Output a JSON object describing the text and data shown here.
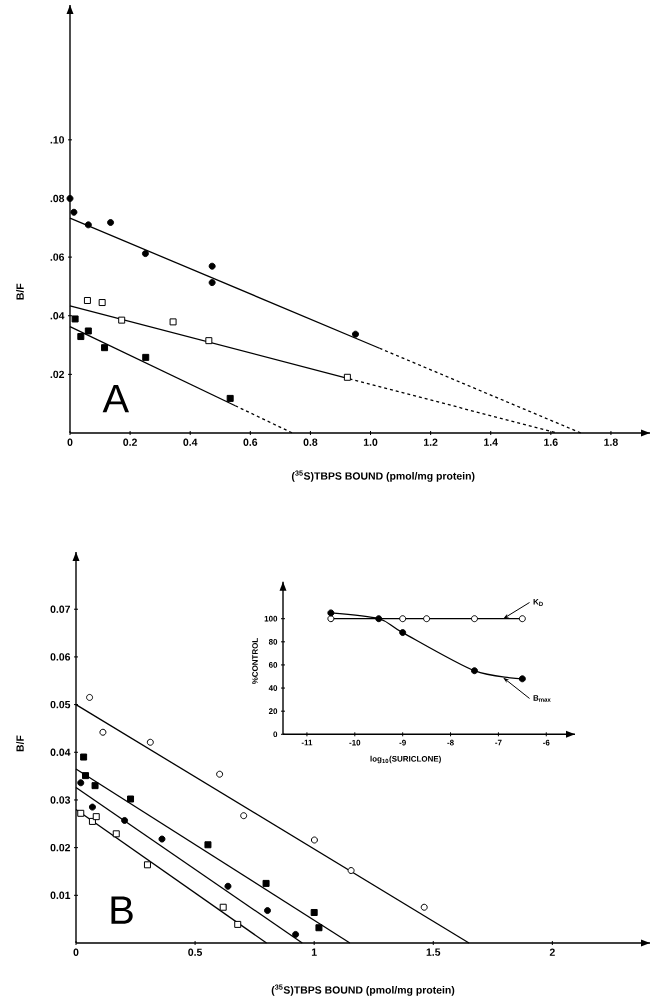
{
  "chart_data": [
    {
      "type": "scatter",
      "xlabel": "($^{35}$S)TBPS BOUND (pmol/mg protein)",
      "ylabel": "B/F",
      "xlim": [
        0,
        1.93
      ],
      "ylim": [
        0,
        0.146
      ],
      "xticks": [
        0,
        0.2,
        0.4,
        0.6,
        0.8,
        {
          "value": 1,
          "label": "1.0"
        },
        1.2,
        1.4,
        1.6,
        1.8
      ],
      "yticks": [
        {
          "value": 0.02,
          "label": ".02"
        },
        {
          "value": 0.04,
          "label": ".04"
        },
        {
          "value": 0.06,
          "label": ".06"
        },
        {
          "value": 0.08,
          "label": ".08"
        },
        {
          "value": 0.1,
          "label": ".10"
        }
      ],
      "annotations": [
        "A"
      ],
      "series": [
        {
          "marker": "circle",
          "color": "#000000",
          "x": [
            0,
            0.013,
            0.061,
            0.135,
            0.251,
            0.473,
            0.473,
            0.95
          ],
          "values": [
            0.08,
            0.0753,
            0.071,
            0.0718,
            0.0612,
            0.0569,
            0.0513,
            0.0337
          ]
        },
        {
          "marker": "square",
          "color": "#ffffff",
          "x": [
            0.058,
            0.107,
            0.172,
            0.343,
            0.462,
            0.923
          ],
          "values": [
            0.0452,
            0.0445,
            0.0385,
            0.0379,
            0.0315,
            0.019
          ]
        },
        {
          "marker": "square",
          "color": "#000000",
          "x": [
            0.017,
            0.036,
            0.061,
            0.115,
            0.252,
            0.533
          ],
          "values": [
            0.0389,
            0.0329,
            0.0348,
            0.0291,
            0.0258,
            0.0118
          ]
        },
        {
          "type": "line",
          "marker": "none",
          "line_style": "solid",
          "color": "#000000",
          "x": [
            0,
            1.03
          ],
          "values": [
            0.0733,
            0.0289
          ]
        },
        {
          "type": "line",
          "marker": "none",
          "line_style": "dashed",
          "color": "#000000",
          "x": [
            1.03,
            1.7
          ],
          "values": [
            0.0289,
            0
          ]
        },
        {
          "type": "line",
          "marker": "none",
          "line_style": "solid",
          "color": "#000000",
          "x": [
            0,
            0.93
          ],
          "values": [
            0.0434,
            0.0185
          ]
        },
        {
          "type": "line",
          "marker": "none",
          "line_style": "dashed",
          "color": "#000000",
          "x": [
            0.93,
            1.62
          ],
          "values": [
            0.0185,
            0
          ]
        },
        {
          "type": "line",
          "marker": "none",
          "line_style": "solid",
          "color": "#000000",
          "x": [
            0,
            0.55
          ],
          "values": [
            0.0363,
            0.0093
          ]
        },
        {
          "type": "line",
          "marker": "none",
          "line_style": "dashed",
          "color": "#000000",
          "x": [
            0.55,
            0.74
          ],
          "values": [
            0.0093,
            0
          ]
        }
      ]
    },
    {
      "type": "scatter",
      "xlabel": "($^{35}$S)TBPS BOUND (pmol/mg protein)",
      "ylabel": "B/F",
      "xlim": [
        0,
        2.41
      ],
      "ylim": [
        0,
        0.082
      ],
      "xticks": [
        0,
        0.5,
        1,
        1.5,
        2
      ],
      "yticks": [
        0.01,
        0.02,
        0.03,
        0.04,
        0.05,
        0.06,
        0.07
      ],
      "annotations": [
        "B"
      ],
      "series": [
        {
          "marker": "circle",
          "color": "#ffffff",
          "x": [
            0.057,
            0.113,
            0.312,
            0.603,
            0.704,
            1.001,
            1.155,
            1.462
          ],
          "values": [
            0.0515,
            0.0442,
            0.0421,
            0.0354,
            0.0267,
            0.0216,
            0.0152,
            0.0075
          ]
        },
        {
          "marker": "square",
          "color": "#000000",
          "x": [
            0.032,
            0.04,
            0.08,
            0.229,
            0.554,
            0.798,
            1.0,
            1.02
          ],
          "values": [
            0.039,
            0.0351,
            0.033,
            0.0302,
            0.0206,
            0.0125,
            0.0064,
            0.0032
          ]
        },
        {
          "marker": "circle",
          "color": "#000000",
          "x": [
            0.02,
            0.069,
            0.204,
            0.361,
            0.638,
            0.804,
            0.922
          ],
          "values": [
            0.0336,
            0.0285,
            0.0257,
            0.0218,
            0.0119,
            0.0068,
            0.0018
          ]
        },
        {
          "marker": "square",
          "color": "#ffffff",
          "x": [
            0.02,
            0.069,
            0.085,
            0.169,
            0.3,
            0.618,
            0.679
          ],
          "values": [
            0.0272,
            0.0255,
            0.0265,
            0.0229,
            0.0164,
            0.0075,
            0.0039
          ]
        },
        {
          "type": "line",
          "marker": "none",
          "line_style": "solid",
          "color": "#000000",
          "x": [
            0,
            1.65
          ],
          "values": [
            0.05,
            0
          ]
        },
        {
          "type": "line",
          "marker": "none",
          "line_style": "solid",
          "color": "#000000",
          "x": [
            0,
            1.15
          ],
          "values": [
            0.0365,
            0
          ]
        },
        {
          "type": "line",
          "marker": "none",
          "line_style": "solid",
          "color": "#000000",
          "x": [
            0,
            0.95
          ],
          "values": [
            0.0326,
            0
          ]
        },
        {
          "type": "line",
          "marker": "none",
          "line_style": "solid",
          "color": "#000000",
          "x": [
            0,
            0.8
          ],
          "values": [
            0.028,
            0
          ]
        }
      ]
    },
    {
      "type": "line",
      "xlabel": "log$_{10}$(SURICLONE)",
      "ylabel": "%CONTROL",
      "xlim": [
        -11.5,
        -5.4
      ],
      "ylim": [
        0,
        132
      ],
      "xticks": [
        -11,
        -10,
        -9,
        -8,
        -7,
        -6
      ],
      "yticks": [
        0,
        20,
        40,
        60,
        80,
        100
      ],
      "annotations": [
        {
          "text": "K$_{D}$",
          "x": -6.9,
          "y": 100
        },
        {
          "text": "B$_{max}$",
          "x": -6.9,
          "y": 49
        }
      ],
      "series": [
        {
          "marker": "none",
          "line_style": "solid",
          "color": "#000000",
          "x": [
            -10.5,
            -9.5,
            -9,
            -8.5,
            -7.5,
            -6.5
          ],
          "values": [
            100,
            100,
            100,
            100,
            100,
            100
          ]
        },
        {
          "type": "scatter",
          "marker": "circle",
          "color": "#ffffff",
          "x": [
            -10.5,
            -9,
            -8.5,
            -7.5,
            -6.5
          ],
          "values": [
            100,
            100,
            100,
            100,
            100
          ]
        },
        {
          "marker": "none",
          "line_style": "solid",
          "color": "#000000",
          "x": [
            -10.5,
            -9.5,
            -9,
            -7.5,
            -6.5
          ],
          "values": [
            105,
            100,
            88,
            55,
            48
          ]
        },
        {
          "type": "scatter",
          "marker": "circle",
          "color": "#000000",
          "x": [
            -10.5,
            -9.5,
            -9,
            -7.5,
            -6.5
          ],
          "values": [
            105,
            100,
            88,
            55,
            48
          ]
        }
      ]
    }
  ]
}
